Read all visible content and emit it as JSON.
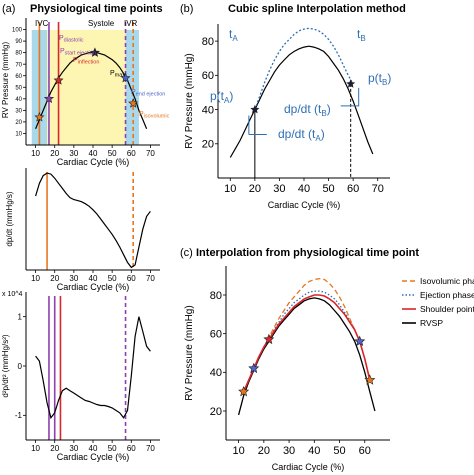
{
  "panel_labels": {
    "a": "(a)",
    "b": "(b)",
    "c": "(c)"
  },
  "colors": {
    "ivc_band": "#a8d8ea",
    "systole_band": "#fdf6b2",
    "ivr_band": "#a8d8ea",
    "curve": "#000000",
    "spline": "#2f6fb5",
    "orange": "#e8761e",
    "purple": "#8e3fb0",
    "red": "#d9252b",
    "blue_pt": "#4a64c8",
    "label_blue": "#2f6fb5"
  },
  "chart_data": [
    {
      "id": "a1",
      "type": "line",
      "title": "Physiological time points",
      "xlabel": "Cardiac Cycle (%)",
      "ylabel": "RV Pressure (mmHg)",
      "xlim": [
        5,
        75
      ],
      "ylim": [
        0,
        110
      ],
      "x_ticks": [
        "10",
        "20",
        "30",
        "40",
        "50",
        "60",
        "70"
      ],
      "y_ticks": [
        "10",
        "20",
        "30",
        "40",
        "50",
        "60",
        "70",
        "80",
        "90",
        "100"
      ],
      "bands": [
        {
          "label": "IVC",
          "x0": 8,
          "x1": 16
        },
        {
          "label": "Systole",
          "x0": 16,
          "x1": 57
        },
        {
          "label": "IVR",
          "x0": 57,
          "x1": 64
        }
      ],
      "curve": {
        "x": [
          10,
          12,
          14,
          16,
          18,
          20,
          22,
          24,
          26,
          28,
          30,
          32,
          34,
          36,
          38,
          40,
          42,
          44,
          46,
          48,
          50,
          52,
          54,
          56,
          58,
          60,
          62,
          64,
          66,
          68
        ],
        "y": [
          14,
          22,
          30,
          38,
          46,
          52,
          58,
          63,
          67,
          71,
          74,
          76,
          78,
          79,
          80,
          80,
          80,
          79,
          78,
          76,
          74,
          71,
          67,
          62,
          56,
          48,
          40,
          30,
          22,
          14
        ]
      },
      "points": [
        {
          "label": "P_diastolic",
          "x": 12,
          "y": 24
        },
        {
          "label": "P_start ejection",
          "x": 17,
          "y": 40
        },
        {
          "label": "P_inflection",
          "x": 22,
          "y": 56
        },
        {
          "label": "P_max",
          "x": 41,
          "y": 80
        },
        {
          "label": "P_end ejection",
          "x": 57,
          "y": 58
        },
        {
          "label": "P_isovolumic",
          "x": 61,
          "y": 36
        }
      ],
      "vlines": [
        {
          "x": 12,
          "color": "orange",
          "dash": false
        },
        {
          "x": 17,
          "color": "purple",
          "dash": false
        },
        {
          "x": 22,
          "color": "red",
          "dash": false
        },
        {
          "x": 57,
          "color": "purple",
          "dash": true
        },
        {
          "x": 61,
          "color": "orange",
          "dash": true
        }
      ]
    },
    {
      "id": "a2",
      "type": "line",
      "xlabel": "Cardiac Cycle (%)",
      "ylabel": "dp/dt (mmHg/s)",
      "xlim": [
        5,
        75
      ],
      "ylim": [
        -1,
        1
      ],
      "x_ticks": [
        "10",
        "20",
        "30",
        "40",
        "50",
        "60",
        "70"
      ],
      "curve": {
        "x": [
          10,
          12,
          14,
          16,
          18,
          20,
          22,
          24,
          26,
          28,
          30,
          32,
          34,
          36,
          38,
          40,
          42,
          44,
          46,
          48,
          50,
          52,
          54,
          56,
          58,
          60,
          62,
          64,
          66,
          68,
          70
        ],
        "y": [
          0.45,
          0.7,
          0.85,
          0.9,
          0.88,
          0.8,
          0.7,
          0.6,
          0.5,
          0.42,
          0.38,
          0.36,
          0.34,
          0.3,
          0.25,
          0.18,
          0.1,
          0.0,
          -0.1,
          -0.2,
          -0.3,
          -0.42,
          -0.55,
          -0.7,
          -0.85,
          -0.95,
          -0.9,
          -0.55,
          -0.2,
          0.05,
          0.15
        ]
      },
      "vlines": [
        {
          "x": 16,
          "color": "orange",
          "dash": false
        },
        {
          "x": 61,
          "color": "orange",
          "dash": true
        }
      ]
    },
    {
      "id": "a3",
      "type": "line",
      "xlabel": "Cardiac Cycle (%)",
      "ylabel": "d²p/dt² (mmHg/s²)",
      "scale_note": "x 10^4",
      "xlim": [
        5,
        75
      ],
      "ylim": [
        -1.5,
        1.5
      ],
      "x_ticks": [
        "10",
        "20",
        "30",
        "40",
        "50",
        "60",
        "70"
      ],
      "y_ticks": [
        "1",
        "0",
        "-1"
      ],
      "curve": {
        "x": [
          10,
          12,
          14,
          16,
          18,
          20,
          22,
          24,
          26,
          28,
          30,
          32,
          34,
          36,
          38,
          40,
          42,
          44,
          46,
          48,
          50,
          52,
          54,
          56,
          58,
          60,
          62,
          64,
          66,
          68,
          70
        ],
        "y": [
          0.2,
          0.1,
          -0.3,
          -0.75,
          -1.05,
          -0.95,
          -0.7,
          -0.5,
          -0.45,
          -0.5,
          -0.55,
          -0.6,
          -0.65,
          -0.7,
          -0.72,
          -0.75,
          -0.78,
          -0.8,
          -0.8,
          -0.82,
          -0.85,
          -0.9,
          -0.95,
          -1.05,
          -0.9,
          -0.2,
          0.6,
          1.0,
          0.7,
          0.4,
          0.3
        ]
      },
      "vlines": [
        {
          "x": 17,
          "color": "purple",
          "dash": false
        },
        {
          "x": 20,
          "color": "purple",
          "dash": false
        },
        {
          "x": 23,
          "color": "red",
          "dash": false
        },
        {
          "x": 57,
          "color": "purple",
          "dash": true
        }
      ]
    },
    {
      "id": "b",
      "type": "line",
      "title": "Cubic spline Interpolation method",
      "xlabel": "Cardiac Cycle (%)",
      "ylabel": "RV Pressure (mmHg)",
      "xlim": [
        5,
        75
      ],
      "ylim": [
        0,
        90
      ],
      "x_ticks": [
        "10",
        "20",
        "30",
        "40",
        "50",
        "60",
        "70"
      ],
      "y_ticks": [
        "20",
        "40",
        "60",
        "80"
      ],
      "curve": {
        "x": [
          10,
          12,
          14,
          16,
          18,
          20,
          22,
          24,
          26,
          28,
          30,
          32,
          34,
          36,
          38,
          40,
          42,
          44,
          46,
          48,
          50,
          52,
          54,
          56,
          58,
          60,
          62,
          64,
          66,
          68
        ],
        "y": [
          12,
          17,
          22,
          28,
          34,
          40,
          46,
          52,
          57,
          62,
          66,
          69,
          72,
          74,
          75.5,
          76.5,
          77,
          76.5,
          75.5,
          74,
          71,
          67,
          63,
          58,
          52,
          45,
          37,
          29,
          21,
          14
        ]
      },
      "spline": {
        "x": [
          20,
          22,
          24,
          26,
          28,
          30,
          32,
          34,
          36,
          38,
          40,
          42,
          44,
          46,
          48,
          50,
          52,
          54,
          56,
          58,
          60
        ],
        "y": [
          40,
          48,
          56,
          63,
          69,
          74,
          78,
          81,
          84,
          86,
          87,
          87.5,
          87,
          86,
          84,
          81,
          77,
          72,
          66,
          60,
          55
        ]
      },
      "points": [
        {
          "label": "t_A",
          "x": 20,
          "y": 40
        },
        {
          "label": "t_B",
          "x": 59,
          "y": 55
        }
      ],
      "annotations": [
        "t_A",
        "t_B",
        "p(t_A)",
        "p(t_B)",
        "dp/dt (t_B)",
        "dp/dt (t_A)"
      ]
    },
    {
      "id": "c",
      "type": "line",
      "title": "Interpolation from physiological time point",
      "xlabel": "Cardiac Cycle (%)",
      "ylabel": "RV Pressure (mmHg)",
      "xlim": [
        5,
        70
      ],
      "ylim": [
        5,
        95
      ],
      "x_ticks": [
        "10",
        "20",
        "30",
        "40",
        "50",
        "60"
      ],
      "y_ticks": [
        "20",
        "40",
        "60",
        "80"
      ],
      "legend": [
        "Isovolumic phase",
        "Ejection phase",
        "Shoulder point",
        "RVSP"
      ],
      "legend_position": "right",
      "series": [
        {
          "name": "Isovolumic phase",
          "color": "orange",
          "style": "dashed",
          "x": [
            12,
            14,
            16,
            18,
            20,
            22,
            24,
            26,
            28,
            30,
            32,
            34,
            36,
            38,
            40,
            42,
            44,
            46,
            48,
            50,
            52,
            54,
            56,
            58,
            60,
            62
          ],
          "y": [
            30,
            36,
            42,
            48,
            53,
            58,
            63,
            68,
            72,
            76,
            79,
            82,
            85,
            87,
            88,
            88.5,
            88,
            86,
            83,
            79,
            74,
            68,
            62,
            56,
            47,
            36
          ]
        },
        {
          "name": "Ejection phase",
          "color": "blue",
          "style": "dotted",
          "x": [
            16,
            18,
            20,
            22,
            24,
            26,
            28,
            30,
            32,
            34,
            36,
            38,
            40,
            42,
            44,
            46,
            48,
            50,
            52,
            54,
            56,
            58
          ],
          "y": [
            42,
            48,
            53,
            58,
            62,
            66,
            70,
            73,
            76,
            78,
            80,
            81.5,
            82,
            82,
            81.5,
            80,
            78,
            75,
            71,
            67,
            62,
            56
          ]
        },
        {
          "name": "Shoulder point",
          "color": "red",
          "style": "solid",
          "x": [
            12,
            14,
            16,
            18,
            20,
            22,
            24,
            26,
            28,
            30,
            32,
            34,
            36,
            38,
            40,
            42,
            44,
            46,
            48,
            50,
            52,
            54,
            56,
            58,
            60,
            62
          ],
          "y": [
            30,
            36,
            42,
            48,
            53,
            57,
            61,
            65,
            68,
            71,
            74,
            76,
            78,
            79,
            80,
            80,
            79.5,
            78,
            76,
            73,
            70,
            66,
            62,
            56,
            47,
            36
          ]
        },
        {
          "name": "RVSP",
          "color": "black",
          "style": "solid",
          "x": [
            10,
            12,
            14,
            16,
            18,
            20,
            22,
            24,
            26,
            28,
            30,
            32,
            34,
            36,
            38,
            40,
            42,
            44,
            46,
            48,
            50,
            52,
            54,
            56,
            58,
            60,
            62,
            64
          ],
          "y": [
            18,
            28,
            35,
            41,
            47,
            52,
            56,
            60,
            64,
            67,
            70,
            73,
            75,
            77,
            78,
            78.5,
            78,
            77,
            75,
            72,
            69,
            65,
            61,
            56,
            49,
            40,
            30,
            20
          ]
        }
      ],
      "points": [
        {
          "x": 12,
          "y": 30,
          "color": "orange"
        },
        {
          "x": 16,
          "y": 42,
          "color": "blue"
        },
        {
          "x": 22,
          "y": 57,
          "color": "red"
        },
        {
          "x": 58,
          "y": 56,
          "color": "blue"
        },
        {
          "x": 62,
          "y": 36,
          "color": "orange"
        }
      ]
    }
  ],
  "text": {
    "a1_ivc": "IVC",
    "a1_systole": "Systole",
    "a1_ivr": "IVR",
    "a1_pdia": "P",
    "a1_pdia_sub": "diastolic",
    "a1_pmax": "P",
    "a1_pmax_sub": "max",
    "a1_pse": "P",
    "a1_pse_sub": "start ejection",
    "a1_pinf": "P",
    "a1_pinf_sub": "inflection",
    "a1_pee": "P",
    "a1_pee_sub": "end ejection",
    "a1_piso": "P",
    "a1_piso_sub": "isovolumic",
    "a2_ylabel": "dp/dt (mmHg/s)",
    "a3_ylabel": "d²p/dt² (mmHg/s²)",
    "a3_scale": "x 10^4",
    "b_ta": "t",
    "b_ta_sub": "A",
    "b_tb": "t",
    "b_tb_sub": "B",
    "b_pta": "p(t",
    "b_pta_sub": "A",
    "b_pta_end": ")",
    "b_ptb": "p(t",
    "b_ptb_sub": "B",
    "b_ptb_end": ")",
    "b_dpb": "dp/dt (t",
    "b_dpb_sub": "B",
    "b_dpb_end": ")",
    "b_dpa": "dp/dt (t",
    "b_dpa_sub": "A",
    "b_dpa_end": ")"
  }
}
